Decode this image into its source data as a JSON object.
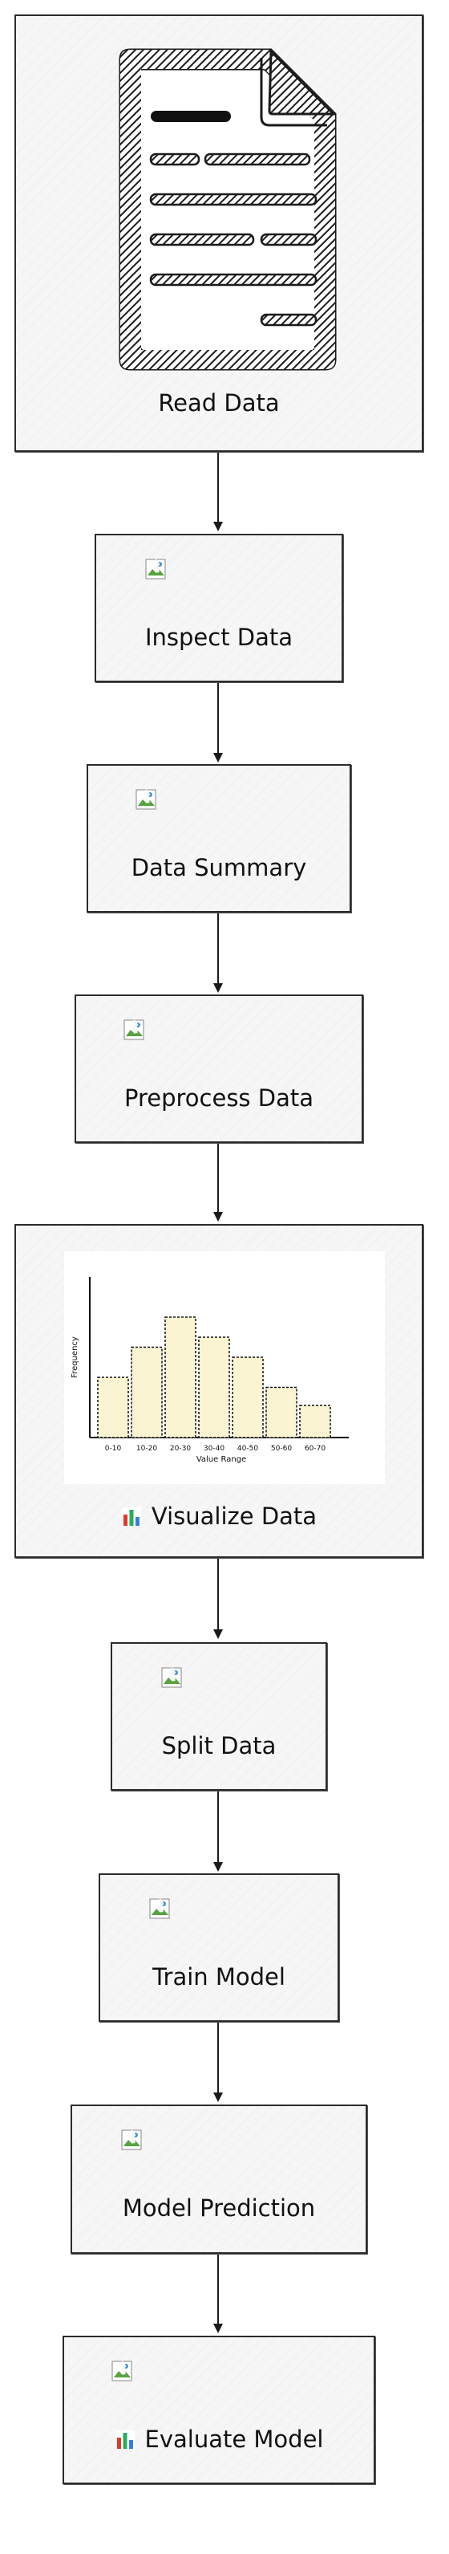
{
  "steps": [
    {
      "id": "read",
      "label": "Read Data",
      "media": "document-icon"
    },
    {
      "id": "inspect",
      "label": "Inspect Data",
      "media": "broken-image-icon"
    },
    {
      "id": "summary",
      "label": "Data Summary",
      "media": "broken-image-icon"
    },
    {
      "id": "preprocess",
      "label": "Preprocess Data",
      "media": "broken-image-icon"
    },
    {
      "id": "visualize",
      "label": "Visualize Data",
      "media": "histogram-chart",
      "prefix_icon": "bar-chart-emoji-icon"
    },
    {
      "id": "split",
      "label": "Split Data",
      "media": "broken-image-icon"
    },
    {
      "id": "train",
      "label": "Train Model",
      "media": "broken-image-icon"
    },
    {
      "id": "predict",
      "label": "Model Prediction",
      "media": "broken-image-icon"
    },
    {
      "id": "evaluate",
      "label": "Evaluate Model",
      "media": "broken-image-icon",
      "prefix_icon": "bar-chart-emoji-icon"
    }
  ],
  "chart_data": {
    "type": "bar",
    "categories": [
      "0-10",
      "10-20",
      "20-30",
      "30-40",
      "40-50",
      "50-60",
      "60-70"
    ],
    "values": [
      6,
      9,
      12,
      10,
      8,
      5,
      3.2
    ],
    "xlabel": "Value Range",
    "ylabel": "Frequency",
    "ylim": [
      0,
      16
    ],
    "grid": false,
    "bar_color": "#fbf4d2"
  },
  "colors": {
    "stroke": "#2b2b2b",
    "node_fill": "#f6f6f6",
    "emoji_bars": [
      "#e0392b",
      "#27ae60",
      "#3b7dd8"
    ]
  }
}
